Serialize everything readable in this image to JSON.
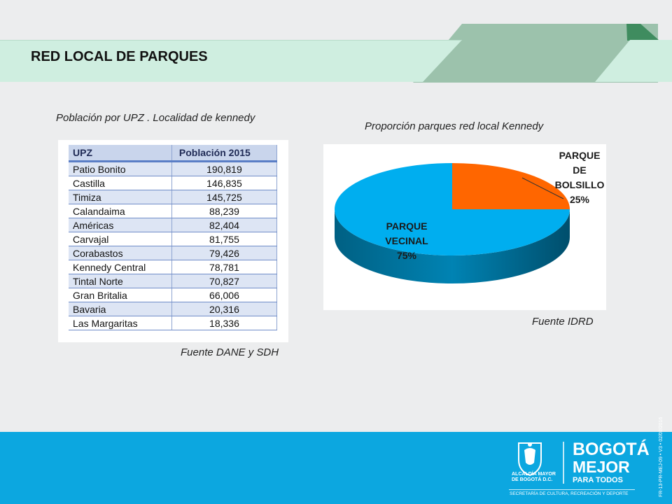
{
  "slide": {
    "title": "RED LOCAL DE PARQUES",
    "colors": {
      "band": "#cfeee0",
      "ribbon_light": "#9cc2ac",
      "ribbon_dark": "#3f8c5f",
      "footer": "#0ca7e0"
    }
  },
  "table_section": {
    "caption": "Población por UPZ . Localidad de kennedy",
    "source": "Fuente DANE y SDH",
    "columns": [
      "UPZ",
      "Población 2015"
    ],
    "rows": [
      [
        "Patio Bonito",
        "190,819"
      ],
      [
        "Castilla",
        "146,835"
      ],
      [
        "Timiza",
        "145,725"
      ],
      [
        "Calandaima",
        "88,239"
      ],
      [
        "Américas",
        "82,404"
      ],
      [
        "Carvajal",
        "81,755"
      ],
      [
        "Corabastos",
        "79,426"
      ],
      [
        "Kennedy Central",
        "78,781"
      ],
      [
        "Tintal Norte",
        "70,827"
      ],
      [
        "Gran Britalia",
        "66,006"
      ],
      [
        "Bavaria",
        "20,316"
      ],
      [
        "Las Margaritas",
        "18,336"
      ]
    ]
  },
  "chart_section": {
    "caption": "Proporción parques red local Kennedy",
    "source": "Fuente IDRD"
  },
  "chart_data": {
    "type": "pie",
    "style": "3d",
    "title": "",
    "slices": [
      {
        "label_lines": [
          "PARQUE",
          "VECINAL",
          "75%"
        ],
        "value": 75,
        "color": "#00aeef"
      },
      {
        "label_lines": [
          "PARQUE",
          "DE",
          "BOLSILLO",
          "25%"
        ],
        "value": 25,
        "color": "#ff6600"
      }
    ]
  },
  "footer": {
    "alcaldia_line1": "ALCALDÍA MAYOR",
    "alcaldia_line2": "DE BOGOTÁ D.C.",
    "brand_line1": "BOGOTÁ",
    "brand_line2": "MEJOR",
    "brand_line3": "PARA TODOS",
    "secretaria": "SECRETARÍA DE CULTURA, RECREACIÓN Y DEPORTE",
    "doc_code": "FR-13-PR-MEJ-09 • V3 • 02/02/2016"
  }
}
